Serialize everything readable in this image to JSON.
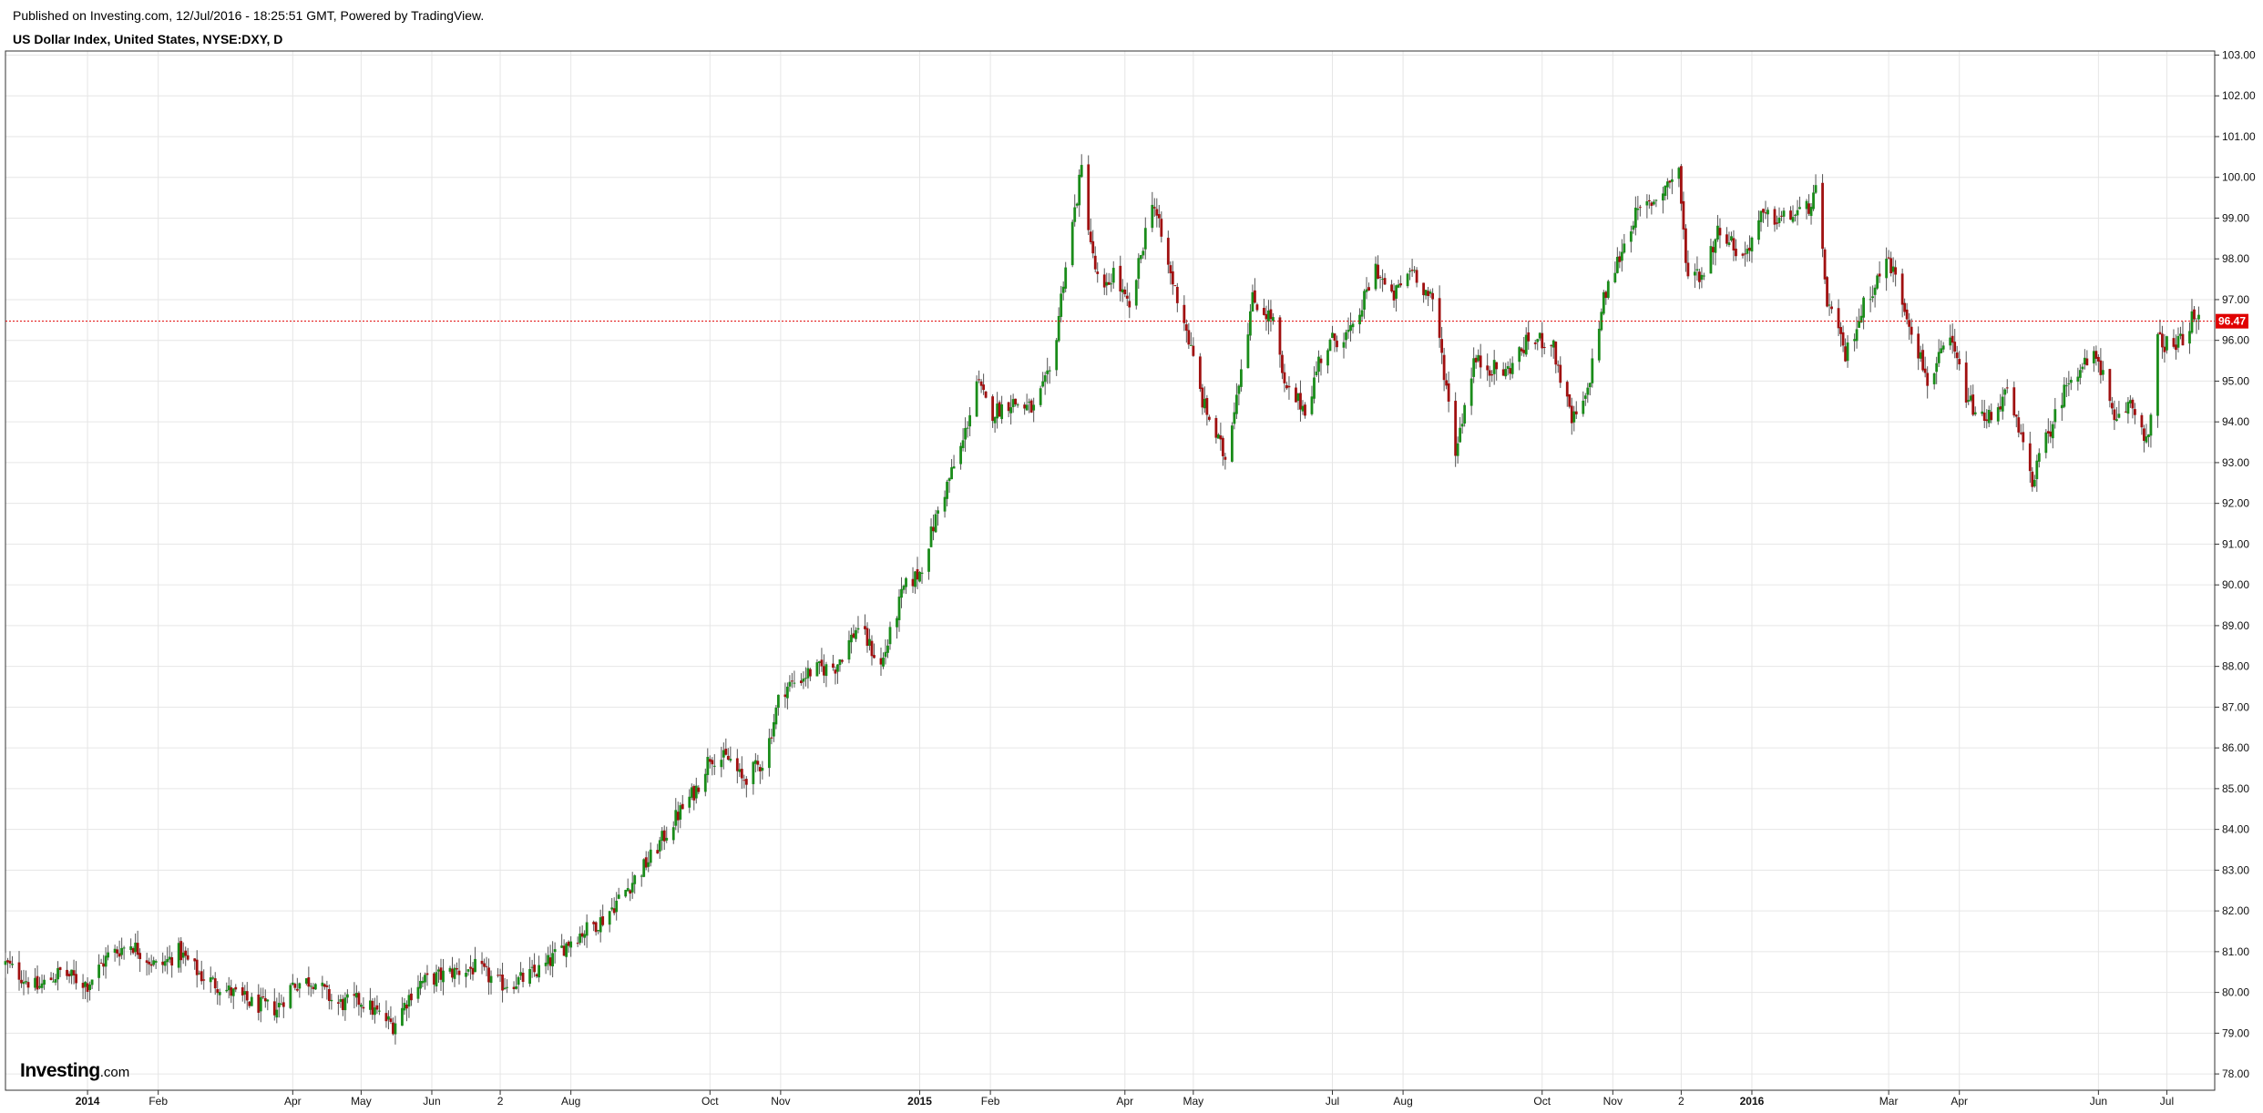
{
  "header": {
    "published": "Published on Investing.com, 12/Jul/2016 - 18:25:51 GMT, Powered by TradingView.",
    "title": "US Dollar Index, United States, NYSE:DXY, D"
  },
  "logo": {
    "main": "Investing",
    "suffix": ".com"
  },
  "colors": {
    "up": "#1a8c1a",
    "down": "#a01010",
    "price_line": "#e00000",
    "grid": "#e6e6e6",
    "axis": "#333333"
  },
  "chart_data": {
    "type": "candlestick",
    "title": "US Dollar Index, United States, NYSE:DXY, D",
    "interval": "D",
    "last_price": 96.47,
    "last_price_label": "96.47",
    "grid": true,
    "ylim": [
      77.6,
      103.1
    ],
    "y_ticks": [
      "103.00",
      "102.00",
      "101.00",
      "100.00",
      "99.00",
      "98.00",
      "97.00",
      "96.00",
      "95.00",
      "94.00",
      "93.00",
      "92.00",
      "91.00",
      "90.00",
      "89.00",
      "88.00",
      "87.00",
      "86.00",
      "85.00",
      "84.00",
      "83.00",
      "82.00",
      "81.00",
      "80.00",
      "79.00",
      "78.00"
    ],
    "x_ticks": [
      {
        "label": "2014",
        "date": "2014-01-01",
        "major": true
      },
      {
        "label": "Feb",
        "date": "2014-02-01"
      },
      {
        "label": "Apr",
        "date": "2014-04-01"
      },
      {
        "label": "May",
        "date": "2014-05-01"
      },
      {
        "label": "Jun",
        "date": "2014-06-01"
      },
      {
        "label": "2",
        "date": "2014-07-01"
      },
      {
        "label": "Aug",
        "date": "2014-08-01"
      },
      {
        "label": "Oct",
        "date": "2014-10-01"
      },
      {
        "label": "Nov",
        "date": "2014-11-01"
      },
      {
        "label": "2015",
        "date": "2015-01-01",
        "major": true
      },
      {
        "label": "Feb",
        "date": "2015-02-01"
      },
      {
        "label": "Apr",
        "date": "2015-04-01"
      },
      {
        "label": "May",
        "date": "2015-05-01"
      },
      {
        "label": "Jul",
        "date": "2015-07-01"
      },
      {
        "label": "Aug",
        "date": "2015-08-01"
      },
      {
        "label": "Oct",
        "date": "2015-10-01"
      },
      {
        "label": "Nov",
        "date": "2015-11-01"
      },
      {
        "label": "2",
        "date": "2015-12-01"
      },
      {
        "label": "2016",
        "date": "2016-01-01",
        "major": true
      },
      {
        "label": "Mar",
        "date": "2016-03-01"
      },
      {
        "label": "Apr",
        "date": "2016-04-01"
      },
      {
        "label": "Jun",
        "date": "2016-06-01"
      },
      {
        "label": "Jul",
        "date": "2016-07-01"
      }
    ],
    "x_range": [
      "2013-11-26",
      "2016-07-22"
    ],
    "close_path": [
      [
        "2013-11-26",
        80.7
      ],
      [
        "2013-12-10",
        80.1
      ],
      [
        "2013-12-20",
        80.5
      ],
      [
        "2014-01-01",
        80.2
      ],
      [
        "2014-01-10",
        80.9
      ],
      [
        "2014-01-20",
        81.2
      ],
      [
        "2014-02-01",
        80.6
      ],
      [
        "2014-02-10",
        81.0
      ],
      [
        "2014-02-20",
        80.4
      ],
      [
        "2014-03-05",
        80.0
      ],
      [
        "2014-03-15",
        79.7
      ],
      [
        "2014-03-25",
        79.6
      ],
      [
        "2014-04-01",
        80.2
      ],
      [
        "2014-04-10",
        80.3
      ],
      [
        "2014-04-20",
        79.7
      ],
      [
        "2014-05-01",
        79.8
      ],
      [
        "2014-05-10",
        79.4
      ],
      [
        "2014-05-15",
        79.2
      ],
      [
        "2014-05-25",
        80.2
      ],
      [
        "2014-06-10",
        80.5
      ],
      [
        "2014-06-20",
        80.6
      ],
      [
        "2014-07-01",
        80.2
      ],
      [
        "2014-07-10",
        80.3
      ],
      [
        "2014-07-20",
        80.6
      ],
      [
        "2014-08-01",
        81.3
      ],
      [
        "2014-08-15",
        81.8
      ],
      [
        "2014-08-25",
        82.5
      ],
      [
        "2014-09-05",
        83.3
      ],
      [
        "2014-09-15",
        84.2
      ],
      [
        "2014-09-25",
        85.0
      ],
      [
        "2014-10-01",
        85.8
      ],
      [
        "2014-10-10",
        85.7
      ],
      [
        "2014-10-15",
        85.2
      ],
      [
        "2014-10-25",
        85.7
      ],
      [
        "2014-11-01",
        87.4
      ],
      [
        "2014-11-15",
        87.9
      ],
      [
        "2014-11-25",
        88.0
      ],
      [
        "2014-12-05",
        89.0
      ],
      [
        "2014-12-15",
        88.0
      ],
      [
        "2014-12-25",
        89.9
      ],
      [
        "2015-01-01",
        90.3
      ],
      [
        "2015-01-10",
        92.0
      ],
      [
        "2015-01-20",
        93.5
      ],
      [
        "2015-01-26",
        95.0
      ],
      [
        "2015-02-01",
        94.2
      ],
      [
        "2015-02-10",
        94.5
      ],
      [
        "2015-02-20",
        94.3
      ],
      [
        "2015-02-28",
        95.3
      ],
      [
        "2015-03-05",
        97.5
      ],
      [
        "2015-03-13",
        100.2
      ],
      [
        "2015-03-18",
        98.0
      ],
      [
        "2015-03-22",
        97.0
      ],
      [
        "2015-03-27",
        97.7
      ],
      [
        "2015-04-03",
        96.7
      ],
      [
        "2015-04-13",
        99.5
      ],
      [
        "2015-04-20",
        97.8
      ],
      [
        "2015-04-27",
        96.5
      ],
      [
        "2015-05-05",
        94.5
      ],
      [
        "2015-05-15",
        93.1
      ],
      [
        "2015-05-27",
        97.0
      ],
      [
        "2015-06-05",
        96.5
      ],
      [
        "2015-06-10",
        94.8
      ],
      [
        "2015-06-20",
        94.3
      ],
      [
        "2015-06-25",
        95.5
      ],
      [
        "2015-07-01",
        96.0
      ],
      [
        "2015-07-10",
        96.2
      ],
      [
        "2015-07-20",
        97.8
      ],
      [
        "2015-07-27",
        97.0
      ],
      [
        "2015-08-05",
        97.8
      ],
      [
        "2015-08-15",
        96.8
      ],
      [
        "2015-08-24",
        93.3
      ],
      [
        "2015-09-01",
        95.5
      ],
      [
        "2015-09-15",
        95.2
      ],
      [
        "2015-09-25",
        96.0
      ],
      [
        "2015-10-05",
        96.0
      ],
      [
        "2015-10-14",
        94.0
      ],
      [
        "2015-10-20",
        94.5
      ],
      [
        "2015-10-28",
        97.0
      ],
      [
        "2015-11-10",
        99.0
      ],
      [
        "2015-11-20",
        99.5
      ],
      [
        "2015-11-30",
        100.2
      ],
      [
        "2015-12-03",
        97.8
      ],
      [
        "2015-12-10",
        97.6
      ],
      [
        "2015-12-18",
        98.8
      ],
      [
        "2015-12-28",
        98.0
      ],
      [
        "2016-01-05",
        99.0
      ],
      [
        "2016-01-15",
        99.0
      ],
      [
        "2016-01-25",
        99.2
      ],
      [
        "2016-01-29",
        99.6
      ],
      [
        "2016-02-03",
        97.0
      ],
      [
        "2016-02-11",
        95.6
      ],
      [
        "2016-02-20",
        97.0
      ],
      [
        "2016-03-01",
        98.0
      ],
      [
        "2016-03-10",
        96.5
      ],
      [
        "2016-03-18",
        95.0
      ],
      [
        "2016-03-28",
        96.0
      ],
      [
        "2016-04-05",
        94.5
      ],
      [
        "2016-04-12",
        94.0
      ],
      [
        "2016-04-22",
        94.7
      ],
      [
        "2016-05-03",
        92.6
      ],
      [
        "2016-05-12",
        94.0
      ],
      [
        "2016-05-20",
        95.2
      ],
      [
        "2016-06-01",
        95.6
      ],
      [
        "2016-06-08",
        93.9
      ],
      [
        "2016-06-15",
        94.5
      ],
      [
        "2016-06-23",
        93.5
      ],
      [
        "2016-06-27",
        96.0
      ],
      [
        "2016-07-05",
        95.8
      ],
      [
        "2016-07-12",
        96.5
      ],
      [
        "2016-07-15",
        96.47
      ]
    ]
  }
}
